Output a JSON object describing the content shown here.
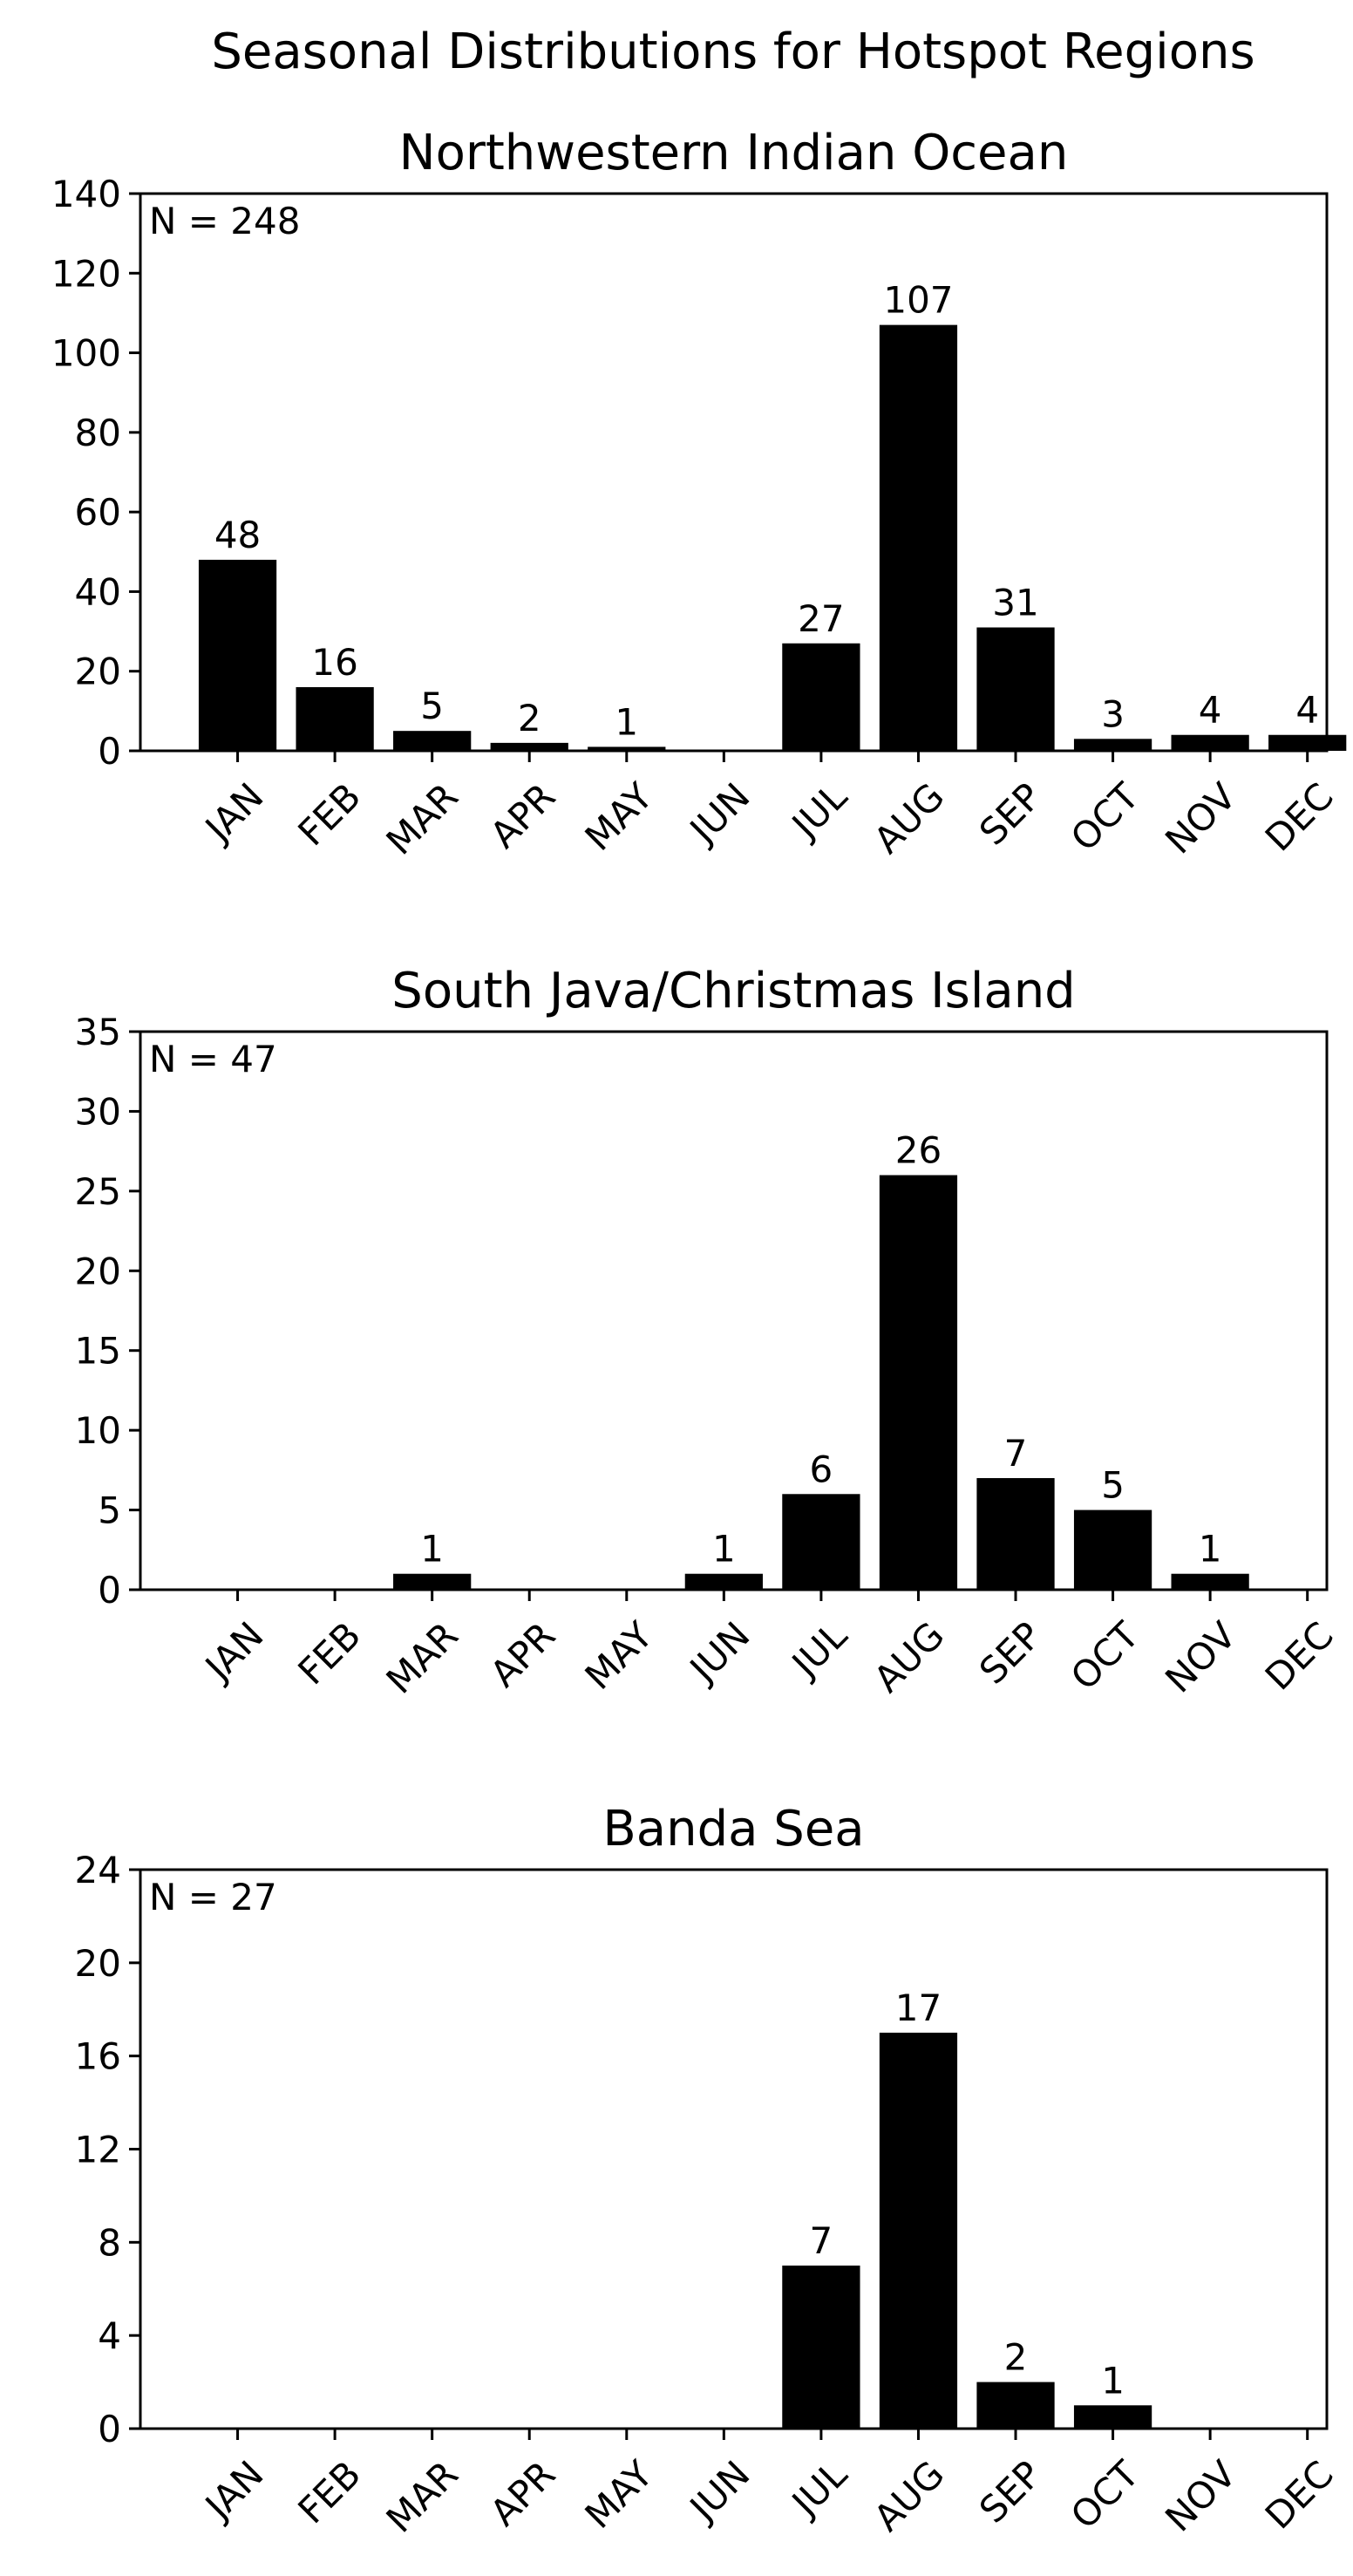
{
  "figure_title": "Seasonal Distributions for Hotspot Regions",
  "chart_data": [
    {
      "type": "bar",
      "title": "Northwestern Indian Ocean",
      "annotation": "N = 248",
      "categories": [
        "JAN",
        "FEB",
        "MAR",
        "APR",
        "MAY",
        "JUN",
        "JUL",
        "AUG",
        "SEP",
        "OCT",
        "NOV",
        "DEC"
      ],
      "values": [
        48,
        16,
        5,
        2,
        1,
        0,
        27,
        107,
        31,
        3,
        4,
        4
      ],
      "ylim": [
        0,
        140
      ],
      "yticks": [
        0,
        20,
        40,
        60,
        80,
        100,
        120,
        140
      ],
      "xlabel": "",
      "ylabel": "",
      "bar_color": "#000000",
      "grid": false
    },
    {
      "type": "bar",
      "title": "South Java/Christmas Island",
      "annotation": "N = 47",
      "categories": [
        "JAN",
        "FEB",
        "MAR",
        "APR",
        "MAY",
        "JUN",
        "JUL",
        "AUG",
        "SEP",
        "OCT",
        "NOV",
        "DEC"
      ],
      "values": [
        0,
        0,
        1,
        0,
        0,
        1,
        6,
        26,
        7,
        5,
        1,
        0
      ],
      "ylim": [
        0,
        35
      ],
      "yticks": [
        0,
        5,
        10,
        15,
        20,
        25,
        30,
        35
      ],
      "xlabel": "",
      "ylabel": "",
      "bar_color": "#000000",
      "grid": false
    },
    {
      "type": "bar",
      "title": "Banda Sea",
      "annotation": "N = 27",
      "categories": [
        "JAN",
        "FEB",
        "MAR",
        "APR",
        "MAY",
        "JUN",
        "JUL",
        "AUG",
        "SEP",
        "OCT",
        "NOV",
        "DEC"
      ],
      "values": [
        0,
        0,
        0,
        0,
        0,
        0,
        7,
        17,
        2,
        1,
        0,
        0
      ],
      "ylim": [
        0,
        24
      ],
      "yticks": [
        0,
        4,
        8,
        12,
        16,
        20,
        24
      ],
      "xlabel": "",
      "ylabel": "",
      "bar_color": "#000000",
      "grid": false
    }
  ]
}
